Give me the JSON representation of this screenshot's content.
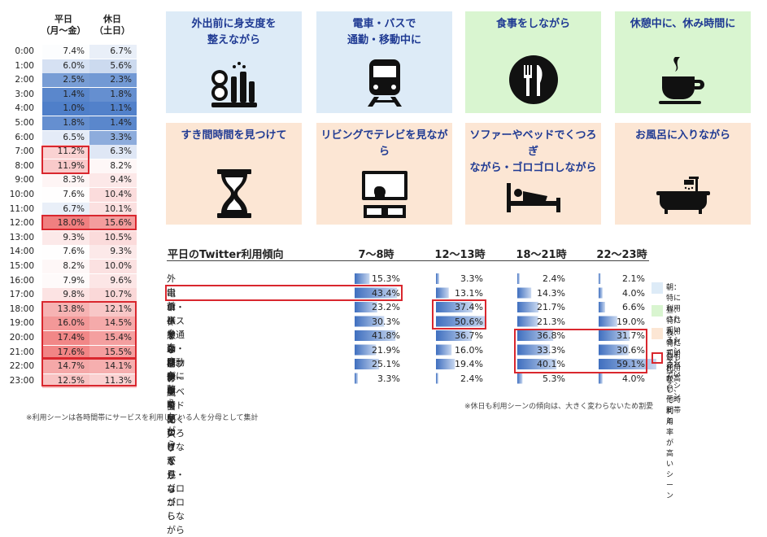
{
  "hourly_table": {
    "header_weekday": "平日",
    "header_weekday_sub": "（月～金）",
    "header_holiday": "休日",
    "header_holiday_sub": "（土日）",
    "rows": [
      {
        "hour": "0:00",
        "weekday": "7.4%",
        "holiday": "6.7%"
      },
      {
        "hour": "1:00",
        "weekday": "6.0%",
        "holiday": "5.6%"
      },
      {
        "hour": "2:00",
        "weekday": "2.5%",
        "holiday": "2.3%"
      },
      {
        "hour": "3:00",
        "weekday": "1.4%",
        "holiday": "1.8%"
      },
      {
        "hour": "4:00",
        "weekday": "1.0%",
        "holiday": "1.1%"
      },
      {
        "hour": "5:00",
        "weekday": "1.8%",
        "holiday": "1.4%"
      },
      {
        "hour": "6:00",
        "weekday": "6.5%",
        "holiday": "3.3%"
      },
      {
        "hour": "7:00",
        "weekday": "11.2%",
        "holiday": "6.3%"
      },
      {
        "hour": "8:00",
        "weekday": "11.9%",
        "holiday": "8.2%"
      },
      {
        "hour": "9:00",
        "weekday": "8.3%",
        "holiday": "9.4%"
      },
      {
        "hour": "10:00",
        "weekday": "7.6%",
        "holiday": "10.4%"
      },
      {
        "hour": "11:00",
        "weekday": "6.7%",
        "holiday": "10.1%"
      },
      {
        "hour": "12:00",
        "weekday": "18.0%",
        "holiday": "15.6%"
      },
      {
        "hour": "13:00",
        "weekday": "9.3%",
        "holiday": "10.5%"
      },
      {
        "hour": "14:00",
        "weekday": "7.6%",
        "holiday": "9.3%"
      },
      {
        "hour": "15:00",
        "weekday": "8.2%",
        "holiday": "10.0%"
      },
      {
        "hour": "16:00",
        "weekday": "7.9%",
        "holiday": "9.6%"
      },
      {
        "hour": "17:00",
        "weekday": "9.8%",
        "holiday": "10.7%"
      },
      {
        "hour": "18:00",
        "weekday": "13.8%",
        "holiday": "12.1%"
      },
      {
        "hour": "19:00",
        "weekday": "16.0%",
        "holiday": "14.5%"
      },
      {
        "hour": "20:00",
        "weekday": "17.4%",
        "holiday": "15.4%"
      },
      {
        "hour": "21:00",
        "weekday": "17.6%",
        "holiday": "15.5%"
      },
      {
        "hour": "22:00",
        "weekday": "14.7%",
        "holiday": "14.1%"
      },
      {
        "hour": "23:00",
        "weekday": "12.5%",
        "holiday": "11.3%"
      }
    ],
    "colors": {
      "low": "#4f7fc9",
      "mid": "#ffffff",
      "high": "#f08080"
    }
  },
  "scene_cards": [
    {
      "label_1": "外出前に身支度を",
      "label_2": "整えながら",
      "color": "blue",
      "icon": "makeup-icon"
    },
    {
      "label_1": "電車・バスで",
      "label_2": "通勤・移動中に",
      "color": "blue",
      "icon": "train-icon"
    },
    {
      "label_1": "食事をしながら",
      "label_2": "",
      "color": "green",
      "icon": "meal-icon"
    },
    {
      "label_1": "休憩中に、休み時間に",
      "label_2": "",
      "color": "green",
      "icon": "coffee-icon"
    },
    {
      "label_1": "すき間時間を見つけて",
      "label_2": "",
      "color": "orange",
      "icon": "hourglass-icon"
    },
    {
      "label_1": "リビングでテレビを見ながら",
      "label_2": "",
      "color": "orange",
      "icon": "tv-icon"
    },
    {
      "label_1": "ソファーやベッドでくつろぎ",
      "label_2": "ながら・ゴロゴロしながら",
      "color": "orange",
      "icon": "bed-icon"
    },
    {
      "label_1": "お風呂に入りながら",
      "label_2": "",
      "color": "orange",
      "icon": "bath-icon"
    }
  ],
  "chart_data": {
    "type": "bar",
    "title": "平日のTwitter利用傾向",
    "columns": [
      "7～8時",
      "12～13時",
      "18～21時",
      "22～23時"
    ],
    "rows": [
      {
        "label": "外出前に身支度を整えながら",
        "values": [
          15.3,
          3.3,
          2.4,
          2.1
        ],
        "labels": [
          "15.3%",
          "3.3%",
          "2.4%",
          "2.1%"
        ]
      },
      {
        "label": "電車・バスで通勤・移動中に",
        "values": [
          43.4,
          13.1,
          14.3,
          4.0
        ],
        "labels": [
          "43.4%",
          "13.1%",
          "14.3%",
          "4.0%"
        ]
      },
      {
        "label": "食事をしながら",
        "values": [
          23.2,
          37.4,
          21.7,
          6.6
        ],
        "labels": [
          "23.2%",
          "37.4%",
          "21.7%",
          "6.6%"
        ]
      },
      {
        "label": "休憩中に、休み時間に",
        "values": [
          30.3,
          50.6,
          21.3,
          19.0
        ],
        "labels": [
          "30.3%",
          "50.6%",
          "21.3%",
          "19.0%"
        ]
      },
      {
        "label": "すき間時間を見つけて",
        "values": [
          41.8,
          36.7,
          36.8,
          31.7
        ],
        "labels": [
          "41.8%",
          "36.7%",
          "36.8%",
          "31.7%"
        ]
      },
      {
        "label": "リビングでテレビを見ながら",
        "values": [
          21.9,
          16.0,
          33.3,
          30.6
        ],
        "labels": [
          "21.9%",
          "16.0%",
          "33.3%",
          "30.6%"
        ]
      },
      {
        "label": "ソファーやベッドでくつろぎながら・ゴロゴロしながら",
        "values": [
          25.1,
          19.4,
          40.1,
          59.1
        ],
        "labels": [
          "25.1%",
          "19.4%",
          "40.1%",
          "59.1%"
        ]
      },
      {
        "label": "お風呂に入りながら",
        "values": [
          3.3,
          2.4,
          5.3,
          4.0
        ],
        "labels": [
          "3.3%",
          "2.4%",
          "5.3%",
          "4.0%"
        ]
      }
    ]
  },
  "legend": {
    "morning": "朝：特に利用されているシーン",
    "noon": "昼：特に利用されているシーン",
    "night": "夜：特に利用されているシーン",
    "highlight_1": "最も利用が高い、他時間帯と",
    "highlight_2": "比較して利用率が高いシーン",
    "color_morning": "#ddebf7",
    "color_noon": "#d9f5d0",
    "color_night": "#fce6d4",
    "color_highlight": "#d9272e"
  },
  "notes": {
    "left": "※利用シーンは各時間帯にサービスを利用している人を分母として集計",
    "right": "※休日も利用シーンの傾向は、大きく変わらないため割愛"
  }
}
